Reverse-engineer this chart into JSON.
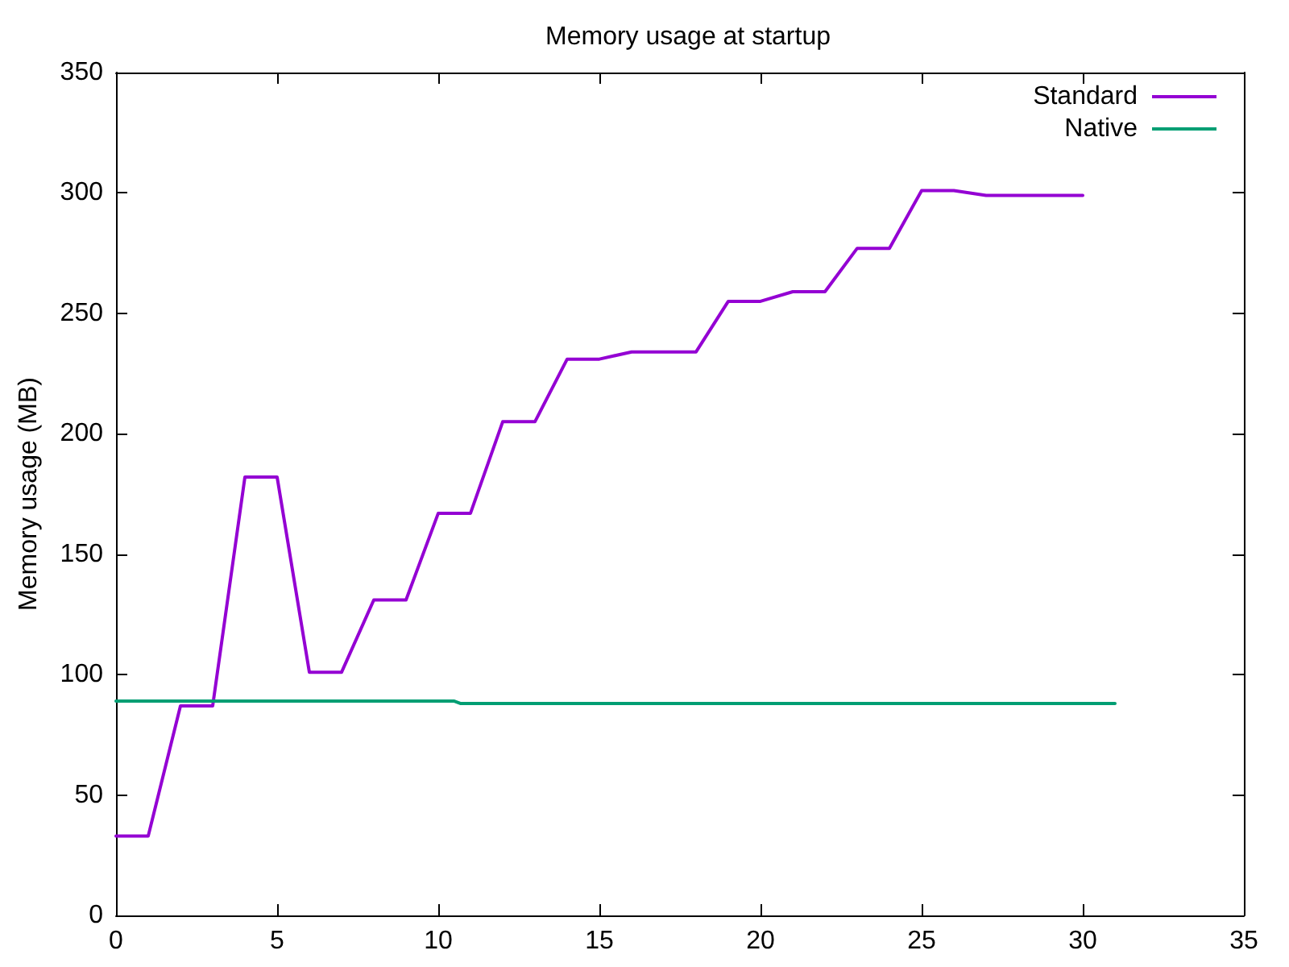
{
  "chart_data": {
    "type": "line",
    "title": "Memory usage at startup",
    "ylabel": "Memory usage (MB)",
    "series": [
      {
        "name": "Standard",
        "color": "#9400d3",
        "x": [
          0,
          1,
          2,
          3,
          4,
          5,
          6,
          7,
          8,
          9,
          10,
          11,
          12,
          13,
          14,
          15,
          16,
          17,
          18,
          19,
          20,
          21,
          22,
          23,
          24,
          25,
          26,
          27,
          28,
          29,
          30
        ],
        "values": [
          33,
          33,
          87,
          87,
          182,
          182,
          101,
          101,
          131,
          131,
          167,
          167,
          205,
          205,
          231,
          231,
          234,
          234,
          234,
          255,
          255,
          259,
          259,
          277,
          277,
          301,
          301,
          299,
          299,
          299,
          299
        ]
      },
      {
        "name": "Native",
        "color": "#009e73",
        "x": [
          0,
          10.5,
          10.7,
          31
        ],
        "values": [
          89,
          89,
          88,
          88
        ]
      }
    ],
    "xlim": [
      0,
      35
    ],
    "xticks": [
      0,
      5,
      10,
      15,
      20,
      25,
      30,
      35
    ],
    "ylim": [
      0,
      350
    ],
    "yticks": [
      0,
      50,
      100,
      150,
      200,
      250,
      300,
      350
    ],
    "grid": false,
    "legend": "top right",
    "marker": "none",
    "line_style": "solid"
  }
}
